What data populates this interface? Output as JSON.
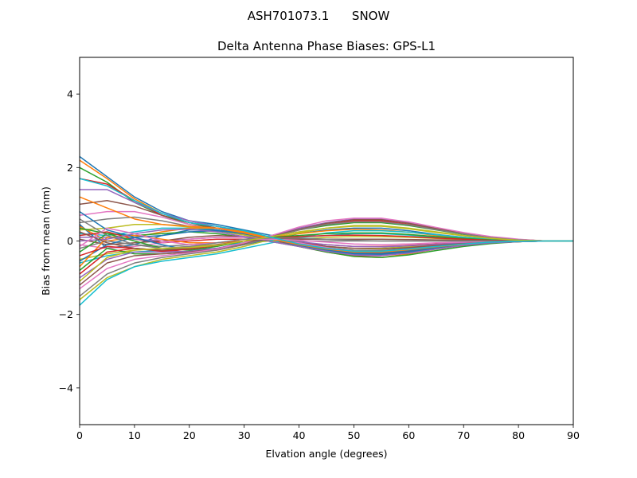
{
  "figure": {
    "suptitle": "ASH701073.1      SNOW"
  },
  "chart_data": {
    "type": "line",
    "title": "Delta Antenna Phase Biases: GPS-L1",
    "xlabel": "Elvation angle (degrees)",
    "ylabel": "Bias from mean (mm)",
    "xlim": [
      0,
      90
    ],
    "ylim": [
      -5,
      5
    ],
    "xticks": [
      0,
      10,
      20,
      30,
      40,
      50,
      60,
      70,
      80,
      90
    ],
    "yticks": [
      -4,
      -2,
      0,
      2,
      4
    ],
    "ytick_labels": [
      "−4",
      "−2",
      "0",
      "2",
      "4"
    ],
    "grid": false,
    "legend": "none",
    "x": [
      0,
      5,
      10,
      15,
      20,
      25,
      30,
      35,
      40,
      45,
      50,
      55,
      60,
      65,
      70,
      75,
      80,
      85,
      90
    ],
    "palette": [
      "#1f77b4",
      "#ff7f0e",
      "#2ca02c",
      "#d62728",
      "#9467bd",
      "#8c564b",
      "#e377c2",
      "#7f7f7f",
      "#bcbd22",
      "#17becf"
    ],
    "series": [
      {
        "values": [
          2.3,
          1.75,
          1.2,
          0.8,
          0.55,
          0.45,
          0.3,
          0.15,
          0.0,
          -0.15,
          -0.2,
          -0.2,
          -0.15,
          -0.1,
          -0.05,
          0.0,
          0.0,
          0.0,
          0.0
        ]
      },
      {
        "values": [
          2.2,
          1.7,
          1.15,
          0.75,
          0.5,
          0.4,
          0.25,
          0.1,
          -0.05,
          -0.2,
          -0.3,
          -0.3,
          -0.22,
          -0.15,
          -0.08,
          -0.02,
          0.0,
          0.0,
          0.0
        ]
      },
      {
        "values": [
          2.0,
          1.6,
          1.05,
          0.7,
          0.45,
          0.35,
          0.25,
          0.1,
          -0.1,
          -0.25,
          -0.35,
          -0.35,
          -0.28,
          -0.18,
          -0.1,
          -0.04,
          -0.01,
          0.0,
          0.0
        ]
      },
      {
        "values": [
          1.7,
          1.55,
          1.1,
          0.7,
          0.5,
          0.4,
          0.25,
          0.05,
          -0.15,
          -0.3,
          -0.4,
          -0.4,
          -0.3,
          -0.2,
          -0.1,
          -0.05,
          -0.02,
          0.0,
          0.0
        ]
      },
      {
        "values": [
          1.4,
          1.4,
          1.05,
          0.75,
          0.55,
          0.4,
          0.22,
          0.05,
          -0.12,
          -0.28,
          -0.38,
          -0.38,
          -0.3,
          -0.2,
          -0.12,
          -0.05,
          -0.02,
          0.0,
          0.0
        ]
      },
      {
        "values": [
          1.0,
          1.1,
          0.95,
          0.7,
          0.5,
          0.35,
          0.2,
          0.02,
          -0.12,
          -0.25,
          -0.33,
          -0.35,
          -0.28,
          -0.18,
          -0.1,
          -0.05,
          -0.02,
          0.0,
          0.0
        ]
      },
      {
        "values": [
          0.7,
          0.8,
          0.8,
          0.65,
          0.45,
          0.3,
          0.2,
          0.05,
          -0.1,
          -0.22,
          -0.3,
          -0.3,
          -0.24,
          -0.16,
          -0.09,
          -0.04,
          -0.01,
          0.0,
          0.0
        ]
      },
      {
        "values": [
          0.5,
          0.6,
          0.65,
          0.55,
          0.4,
          0.3,
          0.18,
          0.05,
          -0.08,
          -0.18,
          -0.25,
          -0.26,
          -0.2,
          -0.14,
          -0.08,
          -0.03,
          -0.01,
          0.0,
          0.0
        ]
      },
      {
        "values": [
          0.3,
          0.35,
          0.45,
          0.45,
          0.38,
          0.28,
          0.16,
          0.05,
          -0.06,
          -0.15,
          -0.2,
          -0.2,
          -0.16,
          -0.11,
          -0.06,
          -0.03,
          -0.01,
          0.0,
          0.0
        ]
      },
      {
        "values": [
          0.2,
          0.15,
          0.25,
          0.35,
          0.35,
          0.3,
          0.2,
          0.05,
          -0.1,
          -0.22,
          -0.3,
          -0.3,
          -0.25,
          -0.17,
          -0.1,
          -0.04,
          -0.01,
          0.0,
          0.0
        ]
      },
      {
        "values": [
          0.45,
          -0.2,
          -0.1,
          0.15,
          0.3,
          0.3,
          0.2,
          0.05,
          -0.1,
          -0.25,
          -0.35,
          -0.36,
          -0.3,
          -0.2,
          -0.12,
          -0.05,
          -0.02,
          0.0,
          0.0
        ]
      },
      {
        "values": [
          0.4,
          0.0,
          0.1,
          0.25,
          0.35,
          0.35,
          0.25,
          0.08,
          -0.1,
          -0.3,
          -0.42,
          -0.45,
          -0.35,
          -0.22,
          -0.12,
          -0.05,
          -0.02,
          0.0,
          0.0
        ]
      },
      {
        "values": [
          0.35,
          0.2,
          0.15,
          0.2,
          0.25,
          0.2,
          0.1,
          -0.02,
          -0.15,
          -0.3,
          -0.42,
          -0.45,
          -0.38,
          -0.26,
          -0.15,
          -0.07,
          -0.02,
          0.0,
          0.0
        ]
      },
      {
        "values": [
          0.15,
          0.25,
          0.05,
          -0.05,
          0.0,
          0.05,
          0.05,
          0.0,
          -0.05,
          -0.1,
          -0.15,
          -0.15,
          -0.12,
          -0.08,
          -0.04,
          -0.02,
          0.0,
          0.0,
          0.0
        ]
      },
      {
        "values": [
          0.1,
          0.1,
          0.05,
          0.0,
          0.05,
          0.1,
          0.1,
          0.05,
          -0.02,
          -0.1,
          -0.15,
          -0.16,
          -0.13,
          -0.09,
          -0.05,
          -0.02,
          0.0,
          0.0,
          0.0
        ]
      },
      {
        "values": [
          0.05,
          -0.1,
          -0.05,
          0.0,
          0.1,
          0.15,
          0.12,
          0.05,
          -0.05,
          -0.15,
          -0.2,
          -0.22,
          -0.18,
          -0.12,
          -0.07,
          -0.03,
          -0.01,
          0.0,
          0.0
        ]
      },
      {
        "values": [
          -0.1,
          -0.2,
          -0.15,
          -0.05,
          0.05,
          0.1,
          0.1,
          0.05,
          -0.05,
          -0.18,
          -0.28,
          -0.3,
          -0.25,
          -0.16,
          -0.09,
          -0.04,
          -0.01,
          0.0,
          0.0
        ]
      },
      {
        "values": [
          -0.2,
          0.0,
          -0.1,
          -0.15,
          -0.1,
          -0.05,
          0.0,
          0.0,
          0.0,
          0.0,
          0.0,
          0.0,
          0.0,
          0.0,
          0.0,
          0.0,
          0.0,
          0.0,
          0.0
        ]
      },
      {
        "values": [
          -0.5,
          -0.35,
          -0.25,
          -0.2,
          -0.15,
          -0.1,
          -0.05,
          0.0,
          0.05,
          0.1,
          0.12,
          0.12,
          0.1,
          0.07,
          0.04,
          0.02,
          0.01,
          0.0,
          0.0
        ]
      },
      {
        "values": [
          -0.6,
          -0.4,
          -0.3,
          -0.25,
          -0.2,
          -0.12,
          -0.05,
          0.02,
          0.1,
          0.15,
          0.2,
          0.2,
          0.16,
          0.1,
          0.06,
          0.03,
          0.01,
          0.0,
          0.0
        ]
      },
      {
        "values": [
          -0.55,
          -0.1,
          0.1,
          -0.1,
          -0.25,
          -0.2,
          -0.1,
          0.05,
          0.2,
          0.3,
          0.35,
          0.35,
          0.28,
          0.18,
          0.1,
          0.05,
          0.02,
          0.0,
          0.0
        ]
      },
      {
        "values": [
          -0.7,
          0.1,
          0.15,
          0.05,
          -0.05,
          -0.05,
          0.0,
          0.1,
          0.2,
          0.28,
          0.32,
          0.3,
          0.24,
          0.15,
          0.08,
          0.03,
          0.01,
          0.0,
          0.0
        ]
      },
      {
        "values": [
          -0.8,
          -0.2,
          -0.35,
          -0.35,
          -0.3,
          -0.2,
          -0.05,
          0.15,
          0.3,
          0.42,
          0.5,
          0.5,
          0.42,
          0.3,
          0.18,
          0.09,
          0.03,
          0.0,
          0.0
        ]
      },
      {
        "values": [
          -0.9,
          -0.3,
          -0.2,
          -0.25,
          -0.3,
          -0.25,
          -0.1,
          0.1,
          0.3,
          0.45,
          0.55,
          0.55,
          0.45,
          0.32,
          0.2,
          0.1,
          0.04,
          0.0,
          0.0
        ]
      },
      {
        "values": [
          -1.0,
          -0.5,
          -0.3,
          -0.3,
          -0.28,
          -0.2,
          -0.05,
          0.15,
          0.35,
          0.5,
          0.6,
          0.6,
          0.5,
          0.35,
          0.22,
          0.11,
          0.04,
          0.0,
          0.0
        ]
      },
      {
        "values": [
          -1.2,
          -0.6,
          -0.4,
          -0.35,
          -0.3,
          -0.22,
          -0.08,
          0.12,
          0.32,
          0.48,
          0.58,
          0.58,
          0.48,
          0.34,
          0.2,
          0.1,
          0.04,
          0.0,
          0.0
        ]
      },
      {
        "values": [
          -1.3,
          -0.75,
          -0.5,
          -0.4,
          -0.32,
          -0.22,
          -0.05,
          0.15,
          0.38,
          0.55,
          0.62,
          0.62,
          0.52,
          0.37,
          0.23,
          0.12,
          0.05,
          0.0,
          0.0
        ]
      },
      {
        "values": [
          -1.5,
          -0.9,
          -0.6,
          -0.45,
          -0.35,
          -0.25,
          -0.1,
          0.1,
          0.3,
          0.45,
          0.52,
          0.52,
          0.44,
          0.31,
          0.19,
          0.09,
          0.03,
          0.0,
          0.0
        ]
      },
      {
        "values": [
          -1.6,
          -1.0,
          -0.7,
          -0.5,
          -0.4,
          -0.3,
          -0.15,
          0.05,
          0.22,
          0.35,
          0.42,
          0.42,
          0.35,
          0.25,
          0.15,
          0.07,
          0.02,
          0.0,
          0.0
        ]
      },
      {
        "values": [
          -1.75,
          -1.05,
          -0.7,
          -0.55,
          -0.45,
          -0.35,
          -0.2,
          -0.05,
          0.1,
          0.22,
          0.28,
          0.28,
          0.24,
          0.17,
          0.1,
          0.05,
          0.02,
          0.0,
          0.0
        ]
      },
      {
        "values": [
          0.8,
          0.3,
          0.1,
          0.15,
          0.25,
          0.28,
          0.2,
          0.05,
          -0.12,
          -0.25,
          -0.32,
          -0.32,
          -0.26,
          -0.17,
          -0.1,
          -0.04,
          -0.01,
          0.0,
          0.0
        ]
      },
      {
        "values": [
          1.2,
          0.9,
          0.6,
          0.45,
          0.4,
          0.35,
          0.22,
          0.05,
          -0.1,
          -0.22,
          -0.3,
          -0.3,
          -0.24,
          -0.16,
          -0.09,
          -0.04,
          -0.01,
          0.0,
          0.0
        ]
      },
      {
        "values": [
          -0.3,
          0.2,
          0.0,
          -0.2,
          -0.25,
          -0.15,
          0.0,
          0.1,
          0.15,
          0.2,
          0.22,
          0.22,
          0.18,
          0.12,
          0.07,
          0.03,
          0.01,
          0.0,
          0.0
        ]
      },
      {
        "values": [
          -0.4,
          -0.15,
          -0.2,
          -0.28,
          -0.22,
          -0.12,
          0.0,
          0.08,
          0.12,
          0.15,
          0.16,
          0.15,
          0.12,
          0.08,
          0.05,
          0.02,
          0.01,
          0.0,
          0.0
        ]
      },
      {
        "values": [
          0.0,
          0.05,
          0.2,
          0.3,
          0.32,
          0.25,
          0.12,
          -0.02,
          -0.15,
          -0.28,
          -0.38,
          -0.4,
          -0.33,
          -0.22,
          -0.12,
          -0.05,
          -0.02,
          0.0,
          0.0
        ]
      },
      {
        "values": [
          0.25,
          -0.05,
          -0.2,
          -0.25,
          -0.2,
          -0.1,
          0.0,
          0.05,
          0.05,
          0.05,
          0.05,
          0.05,
          0.04,
          0.03,
          0.02,
          0.01,
          0.0,
          0.0,
          0.0
        ]
      },
      {
        "values": [
          -0.15,
          0.35,
          0.2,
          0.0,
          -0.1,
          -0.05,
          0.05,
          0.05,
          0.02,
          -0.03,
          -0.08,
          -0.1,
          -0.08,
          -0.05,
          -0.03,
          -0.01,
          0.0,
          0.0,
          0.0
        ]
      },
      {
        "values": [
          0.6,
          0.15,
          -0.1,
          -0.2,
          -0.15,
          -0.05,
          0.05,
          0.08,
          0.08,
          0.05,
          0.02,
          0.0,
          0.0,
          0.0,
          0.0,
          0.0,
          0.0,
          0.0,
          0.0
        ]
      },
      {
        "values": [
          -1.1,
          -0.45,
          -0.25,
          -0.2,
          -0.18,
          -0.12,
          0.0,
          0.12,
          0.25,
          0.35,
          0.4,
          0.4,
          0.33,
          0.23,
          0.14,
          0.07,
          0.02,
          0.0,
          0.0
        ]
      },
      {
        "values": [
          1.7,
          1.5,
          1.1,
          0.75,
          0.5,
          0.4,
          0.28,
          0.1,
          -0.08,
          -0.2,
          -0.28,
          -0.28,
          -0.22,
          -0.15,
          -0.08,
          -0.03,
          -0.01,
          0.0,
          0.0
        ]
      }
    ]
  }
}
